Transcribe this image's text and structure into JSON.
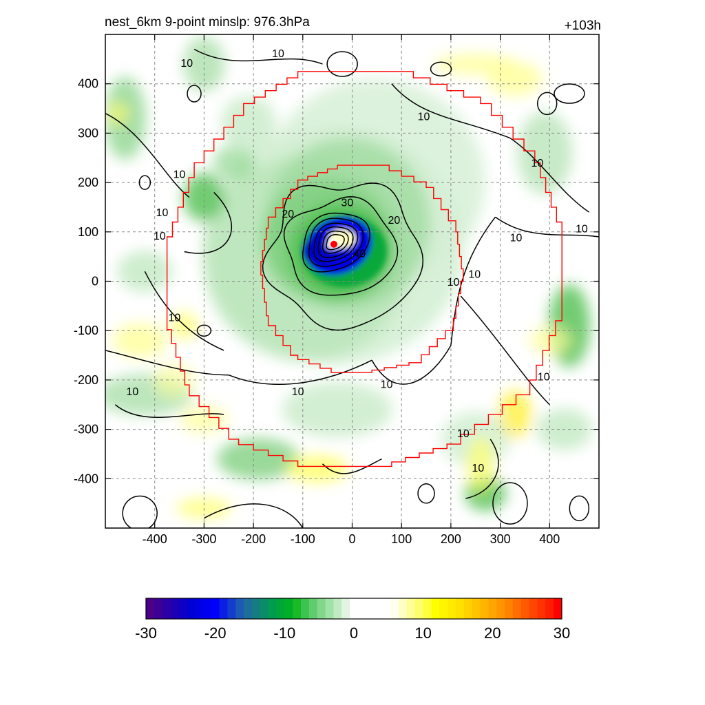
{
  "header": {
    "title": "nest_6km  9-point minslp: 976.3hPa",
    "time_label": "+103h"
  },
  "colors": {
    "domain_box": "#ff0000",
    "contour": "#000000",
    "center_marker": "#ff0000",
    "grid": "#888888"
  },
  "chart_data": {
    "type": "heatmap",
    "title": "nest_6km  9-point minslp: 976.3hPa",
    "xlabel": "",
    "ylabel": "",
    "xlim": [
      -500,
      500
    ],
    "ylim": [
      -500,
      500
    ],
    "x_ticks": [
      -400,
      -300,
      -200,
      -100,
      0,
      100,
      200,
      300,
      400
    ],
    "y_ticks": [
      400,
      300,
      200,
      100,
      0,
      -100,
      -200,
      -300,
      -400
    ],
    "grid": true,
    "storm_center": [
      -37,
      75
    ],
    "contour_levels": [
      10,
      20,
      30,
      40
    ],
    "contour_labels": [
      {
        "text": "10",
        "x": -335,
        "y": 440
      },
      {
        "text": "10",
        "x": -150,
        "y": 460
      },
      {
        "text": "10",
        "x": 145,
        "y": 332
      },
      {
        "text": "10",
        "x": -350,
        "y": 215
      },
      {
        "text": "10",
        "x": -385,
        "y": 138
      },
      {
        "text": "10",
        "x": -390,
        "y": 90
      },
      {
        "text": "10",
        "x": -360,
        "y": -75
      },
      {
        "text": "10",
        "x": -445,
        "y": -225
      },
      {
        "text": "10",
        "x": -110,
        "y": -225
      },
      {
        "text": "10",
        "x": 70,
        "y": -210
      },
      {
        "text": "10",
        "x": 205,
        "y": -3
      },
      {
        "text": "10",
        "x": 248,
        "y": 13
      },
      {
        "text": "10",
        "x": 332,
        "y": 87
      },
      {
        "text": "10",
        "x": 375,
        "y": 238
      },
      {
        "text": "10",
        "x": 465,
        "y": 105
      },
      {
        "text": "10",
        "x": 388,
        "y": -195
      },
      {
        "text": "10",
        "x": 225,
        "y": -310
      },
      {
        "text": "10",
        "x": 255,
        "y": -380
      },
      {
        "text": "20",
        "x": -130,
        "y": 135
      },
      {
        "text": "20",
        "x": 85,
        "y": 122
      },
      {
        "text": "30",
        "x": -10,
        "y": 158
      },
      {
        "text": "40",
        "x": 15,
        "y": 55
      }
    ],
    "colorbar": {
      "min": -30,
      "max": 30,
      "tick_labels": [
        "-30",
        "-20",
        "-10",
        "0",
        "10",
        "20",
        "30"
      ],
      "colors": [
        "#4b0088",
        "#3c0096",
        "#2d00a5",
        "#1e00b4",
        "#0f00c3",
        "#0000d2",
        "#0000e1",
        "#0000f0",
        "#0000ff",
        "#0a1ee6",
        "#143ccd",
        "#1e5ab4",
        "#1e6e9b",
        "#147d82",
        "#0a8c69",
        "#009b50",
        "#00a537",
        "#00af28",
        "#19b928",
        "#3cc350",
        "#5fcd6e",
        "#82d78c",
        "#a0e1a5",
        "#c3ebc3",
        "#e1f5e1",
        "#ffffff",
        "#ffffff",
        "#ffffff",
        "#ffffff",
        "#ffffff",
        "#fffff0",
        "#ffffc3",
        "#ffff96",
        "#ffff6e",
        "#ffff3c",
        "#ffff00",
        "#fff500",
        "#ffeb00",
        "#ffe100",
        "#ffd200",
        "#ffc300",
        "#ffb400",
        "#ffa500",
        "#ff9600",
        "#ff8200",
        "#ff6e00",
        "#ff5a00",
        "#ff4600",
        "#ff3200",
        "#ff1e00",
        "#ff0000"
      ]
    }
  }
}
